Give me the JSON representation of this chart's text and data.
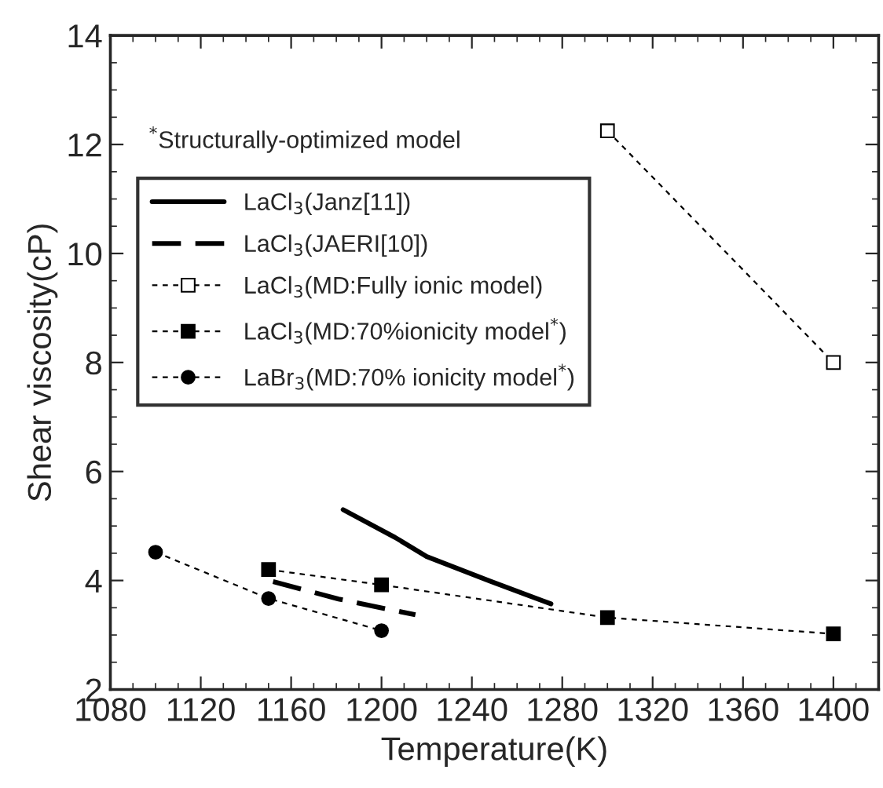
{
  "chart_data": {
    "type": "line",
    "xlabel": "Temperature(K)",
    "ylabel": "Shear viscosity(cP)",
    "xlim": [
      1080,
      1420
    ],
    "xticks": [
      1080,
      1120,
      1160,
      1200,
      1240,
      1280,
      1320,
      1360,
      1400
    ],
    "ylim": [
      2,
      14
    ],
    "yticks": [
      2,
      4,
      6,
      8,
      10,
      12,
      14
    ],
    "legend": "top left",
    "grid": false,
    "annotations": [
      "$^{*}$Structurally-optimized model"
    ],
    "series": [
      {
        "name": "LaCl$_{3}$(Janz[11])",
        "color": "#000000",
        "line_style": "solid",
        "marker": "none",
        "x": [
          1183,
          1206,
          1220,
          1248,
          1275
        ],
        "values": [
          5.3,
          4.79,
          4.44,
          3.99,
          3.57
        ]
      },
      {
        "name": "LaCl$_{3}$(JAERI[10])",
        "color": "#000000",
        "line_style": "dashed",
        "marker": "none",
        "x": [
          1152,
          1181,
          1215
        ],
        "values": [
          3.98,
          3.66,
          3.37
        ]
      },
      {
        "name": "LaCl$_{3}$(MD:Fully ionic model)",
        "color": "#000000",
        "line_style": "dotted",
        "marker": "square",
        "colors": [
          "#ffffff",
          "#ffffff"
        ],
        "x": [
          1300,
          1400
        ],
        "values": [
          12.25,
          8.0
        ]
      },
      {
        "name": "LaCl$_{3}$(MD:70%ionicity model$^{*}$)",
        "color": "#000000",
        "line_style": "dotted",
        "marker": "square",
        "x": [
          1150,
          1200,
          1300,
          1400
        ],
        "values": [
          4.2,
          3.92,
          3.32,
          3.02
        ]
      },
      {
        "name": "LaBr$_{3}$(MD:70% ionicity model$^{*}$)",
        "color": "#000000",
        "line_style": "dotted",
        "marker": "circle",
        "x": [
          1100,
          1150,
          1200
        ],
        "values": [
          4.52,
          3.67,
          3.08
        ]
      }
    ]
  }
}
